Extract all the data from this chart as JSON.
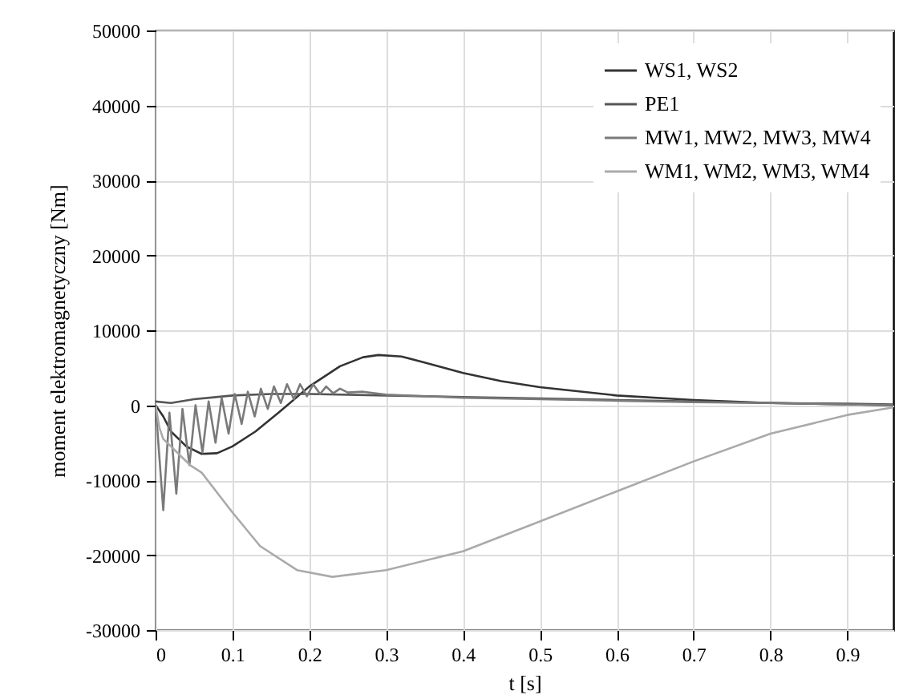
{
  "chart_data": {
    "type": "line",
    "xlabel": "t [s]",
    "ylabel": "moment elektromagnetyczny [Nm]",
    "xlim": [
      0,
      0.96
    ],
    "xticks": [
      0,
      0.1,
      0.2,
      0.3,
      0.4,
      0.5,
      0.6,
      0.7,
      0.8,
      0.9
    ],
    "ylim": [
      -30000,
      50000
    ],
    "yticks": [
      -30000,
      -20000,
      -10000,
      0,
      10000,
      20000,
      30000,
      40000,
      50000
    ],
    "grid": true,
    "legend": "top right",
    "marker": "none",
    "line_style": "solid",
    "series": [
      {
        "name": "WS1, WS2",
        "color": "#333333",
        "x": [
          0,
          0.01,
          0.02,
          0.04,
          0.06,
          0.08,
          0.1,
          0.13,
          0.16,
          0.2,
          0.24,
          0.27,
          0.29,
          0.32,
          0.35,
          0.4,
          0.45,
          0.5,
          0.6,
          0.7,
          0.8,
          0.9,
          0.96
        ],
        "values": [
          0,
          -1500,
          -3500,
          -5500,
          -6500,
          -6400,
          -5500,
          -3500,
          -1000,
          2500,
          5200,
          6400,
          6700,
          6500,
          5700,
          4300,
          3200,
          2400,
          1300,
          700,
          300,
          100,
          0
        ]
      },
      {
        "name": "PE1",
        "color": "#555555",
        "x": [
          0,
          0.02,
          0.05,
          0.1,
          0.15,
          0.2,
          0.3,
          0.4,
          0.5,
          0.6,
          0.7,
          0.8,
          0.9,
          0.96
        ],
        "values": [
          500,
          300,
          800,
          1300,
          1500,
          1500,
          1300,
          1100,
          900,
          700,
          500,
          300,
          200,
          100
        ]
      },
      {
        "name": "MW1, MW2, MW3, MW4",
        "color": "#7a7a7a",
        "x": [
          0,
          0.01,
          0.018,
          0.027,
          0.035,
          0.044,
          0.052,
          0.061,
          0.069,
          0.078,
          0.086,
          0.095,
          0.103,
          0.112,
          0.12,
          0.129,
          0.137,
          0.146,
          0.154,
          0.163,
          0.171,
          0.18,
          0.188,
          0.197,
          0.205,
          0.214,
          0.222,
          0.231,
          0.24,
          0.25,
          0.27,
          0.3,
          0.35,
          0.4,
          0.5,
          0.6,
          0.7,
          0.8,
          0.9,
          0.96
        ],
        "values": [
          0,
          -14000,
          -1000,
          -11800,
          -500,
          -8000,
          0,
          -6300,
          500,
          -5000,
          1000,
          -3800,
          1500,
          -2500,
          1800,
          -1500,
          2200,
          -500,
          2500,
          300,
          2800,
          800,
          2800,
          1200,
          2800,
          1500,
          2500,
          1600,
          2200,
          1700,
          1800,
          1400,
          1200,
          1000,
          800,
          600,
          400,
          300,
          100,
          0
        ]
      },
      {
        "name": "WM1, WM2, WM3, WM4",
        "color": "#aaaaaa",
        "x": [
          0,
          0.005,
          0.01,
          0.02,
          0.03,
          0.045,
          0.06,
          0.1,
          0.136,
          0.184,
          0.23,
          0.3,
          0.4,
          0.5,
          0.6,
          0.7,
          0.8,
          0.9,
          0.96
        ],
        "values": [
          0,
          -3000,
          -4500,
          -5500,
          -6500,
          -8000,
          -9000,
          -14300,
          -18800,
          -22000,
          -22900,
          -22000,
          -19500,
          -15500,
          -11500,
          -7500,
          -3800,
          -1300,
          -300
        ]
      }
    ]
  }
}
